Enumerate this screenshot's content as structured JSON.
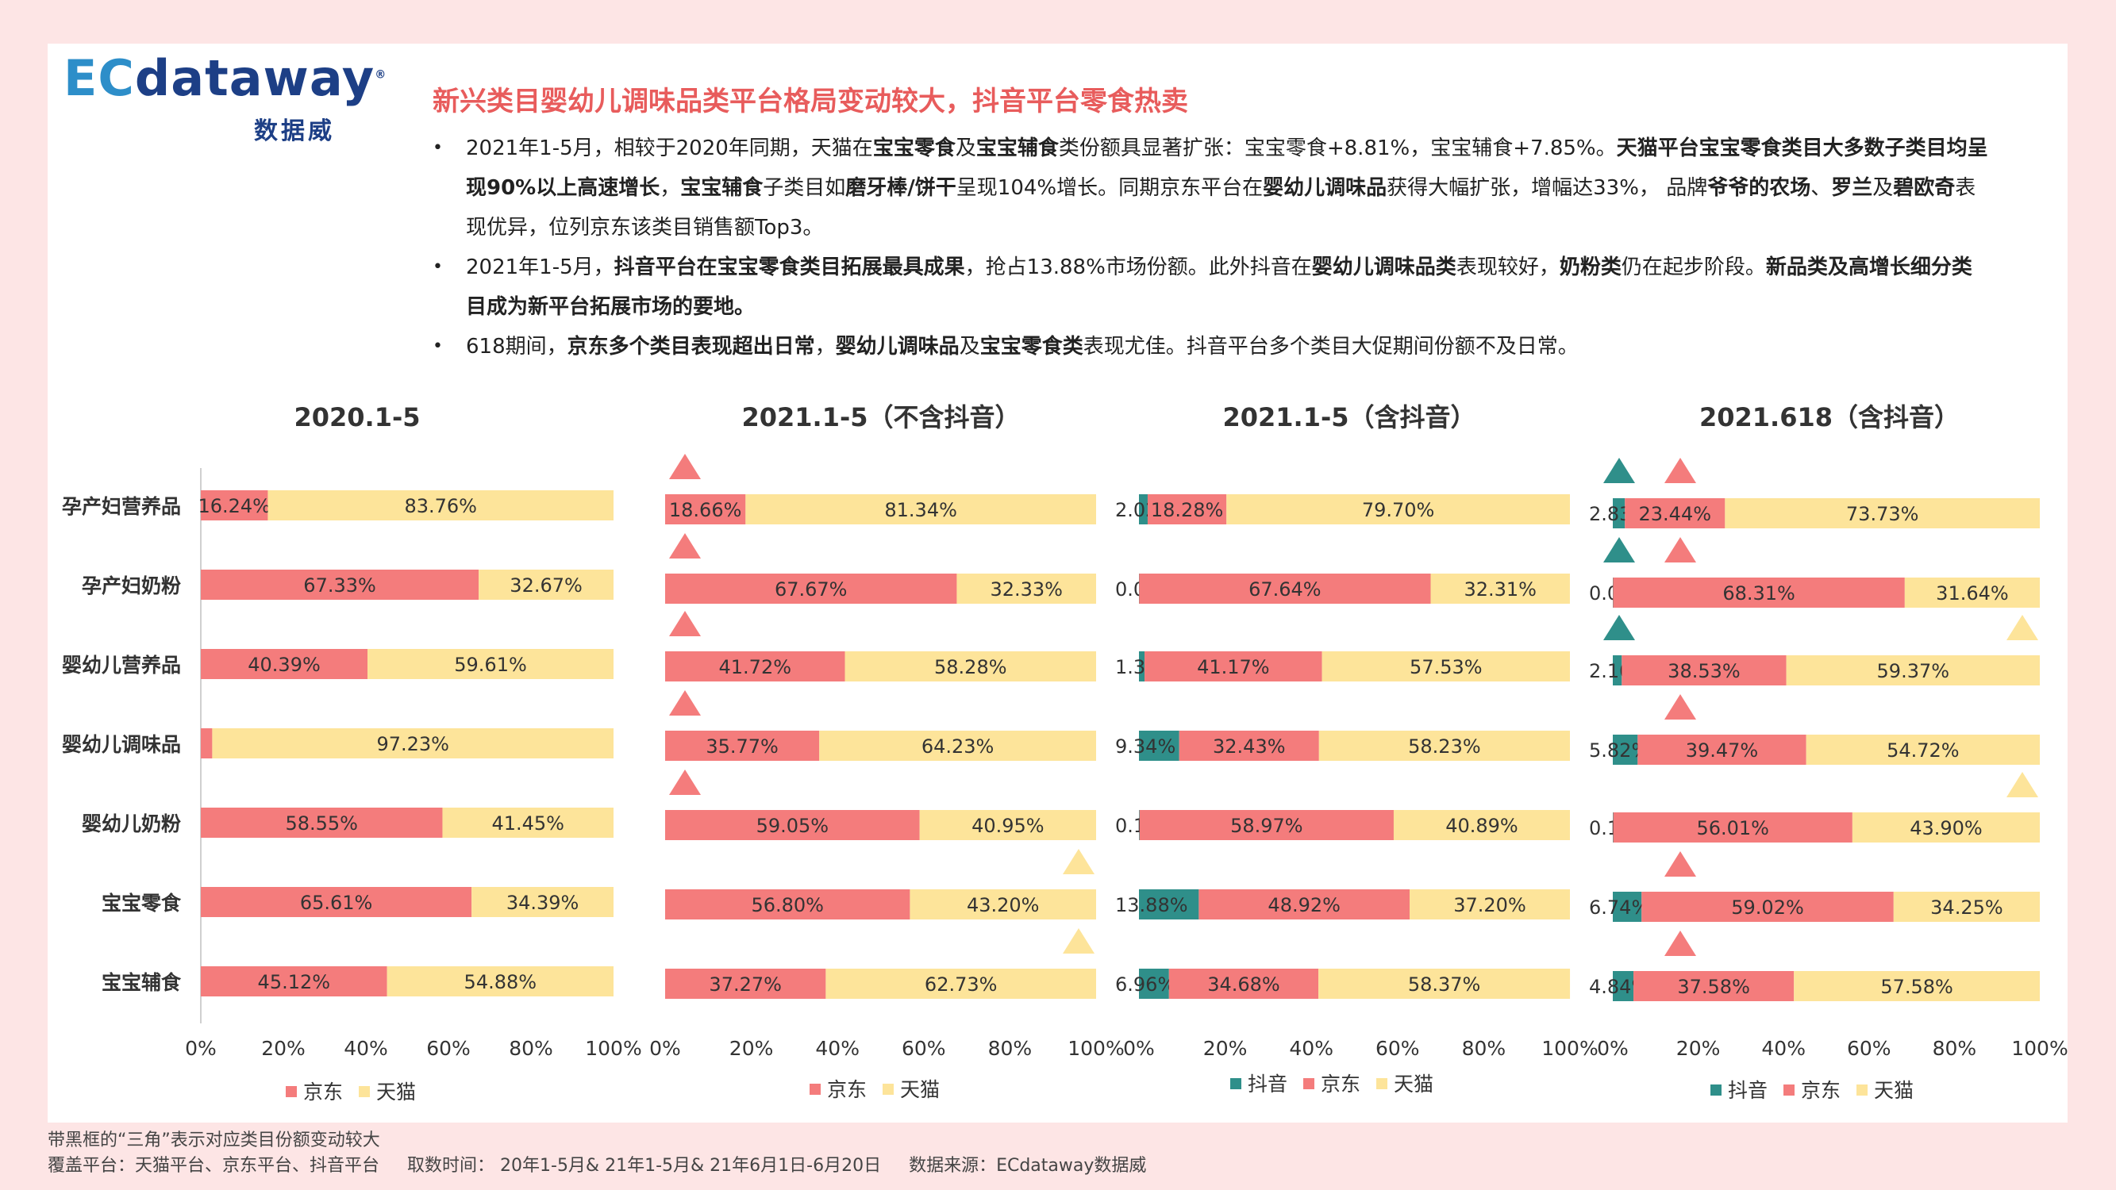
{
  "logo": {
    "text_ec": "EC",
    "text_main": "dataway",
    "reg": "®",
    "subtitle": "数据威"
  },
  "headline": "新兴类目婴幼儿调味品类平台格局变动较大，抖音平台零食热卖",
  "bullets": [
    [
      {
        "t": "2021年1-5月，相较于2020年同期，天猫在",
        "b": false
      },
      {
        "t": "宝宝零食",
        "b": true
      },
      {
        "t": "及",
        "b": false
      },
      {
        "t": "宝宝辅食",
        "b": true
      },
      {
        "t": "类份额具显著扩张：宝宝零食+8.81%，宝宝辅食+7.85%。",
        "b": false
      },
      {
        "t": "天猫平台宝宝零食类目大多数子类目均呈现90%以上高速增长",
        "b": true
      },
      {
        "t": "，",
        "b": false
      },
      {
        "t": "宝宝辅食",
        "b": true
      },
      {
        "t": "子类目如",
        "b": false
      },
      {
        "t": "磨牙棒/饼干",
        "b": true
      },
      {
        "t": "呈现104%增长。同期京东平台在",
        "b": false
      },
      {
        "t": "婴幼儿调味品",
        "b": true
      },
      {
        "t": "获得大幅扩张，增幅达33%， 品牌",
        "b": false
      },
      {
        "t": "爷爷的农场",
        "b": true
      },
      {
        "t": "、",
        "b": false
      },
      {
        "t": "罗兰",
        "b": true
      },
      {
        "t": "及",
        "b": false
      },
      {
        "t": "碧欧奇",
        "b": true
      },
      {
        "t": "表现优异，位列京东该类目销售额Top3。",
        "b": false
      }
    ],
    [
      {
        "t": "2021年1-5月，",
        "b": false
      },
      {
        "t": "抖音平台在宝宝零食类目拓展最具成果",
        "b": true
      },
      {
        "t": "，抢占13.88%市场份额。此外抖音在",
        "b": false
      },
      {
        "t": "婴幼儿调味品类",
        "b": true
      },
      {
        "t": "表现较好，",
        "b": false
      },
      {
        "t": "奶粉类",
        "b": true
      },
      {
        "t": "仍在起步阶段。",
        "b": false
      },
      {
        "t": "新品类及高增长细分类目成为新平台拓展市场的要地。",
        "b": true
      }
    ],
    [
      {
        "t": "618期间，",
        "b": false
      },
      {
        "t": "京东多个类目表现超出日常",
        "b": true
      },
      {
        "t": "，",
        "b": false
      },
      {
        "t": "婴幼儿调味品",
        "b": true
      },
      {
        "t": "及",
        "b": false
      },
      {
        "t": "宝宝零食类",
        "b": true
      },
      {
        "t": "表现尤佳。抖音平台多个类目大促期间份额不及日常。",
        "b": false
      }
    ]
  ],
  "colors": {
    "douyin": "#2f8f8a",
    "jd": "#f47c7c",
    "tmall": "#fde49a",
    "headline": "#e85c5c"
  },
  "chart_data": [
    {
      "type": "bar",
      "title": "2020.1-5",
      "categories": [
        "孕产妇营养品",
        "孕产妇奶粉",
        "婴幼儿营养品",
        "婴幼儿调味品",
        "婴幼儿奶粉",
        "宝宝零食",
        "宝宝辅食"
      ],
      "series": [
        {
          "name": "京东",
          "key": "jd",
          "values": [
            16.24,
            67.33,
            40.39,
            2.77,
            58.55,
            65.61,
            45.12
          ]
        },
        {
          "name": "天猫",
          "key": "tmall",
          "values": [
            83.76,
            32.67,
            59.61,
            97.23,
            41.45,
            34.39,
            54.88
          ]
        }
      ],
      "xticks": [
        "0%",
        "20%",
        "40%",
        "60%",
        "80%",
        "100%"
      ],
      "xlim": [
        0,
        100
      ],
      "legend": [
        "京东",
        "天猫"
      ],
      "markers": []
    },
    {
      "type": "bar",
      "title": "2021.1-5（不含抖音）",
      "categories": [
        "孕产妇营养品",
        "孕产妇奶粉",
        "婴幼儿营养品",
        "婴幼儿调味品",
        "婴幼儿奶粉",
        "宝宝零食",
        "宝宝辅食"
      ],
      "series": [
        {
          "name": "京东",
          "key": "jd",
          "values": [
            18.66,
            67.67,
            41.72,
            35.77,
            59.05,
            56.8,
            37.27
          ]
        },
        {
          "name": "天猫",
          "key": "tmall",
          "values": [
            81.34,
            32.33,
            58.28,
            64.23,
            40.95,
            43.2,
            62.73
          ]
        }
      ],
      "xticks": [
        "0%",
        "20%",
        "40%",
        "60%",
        "80%",
        "100%"
      ],
      "xlim": [
        0,
        100
      ],
      "legend": [
        "京东",
        "天猫"
      ],
      "markers": [
        {
          "row": 0,
          "key": "jd"
        },
        {
          "row": 1,
          "key": "jd"
        },
        {
          "row": 2,
          "key": "jd"
        },
        {
          "row": 3,
          "key": "jd"
        },
        {
          "row": 4,
          "key": "jd"
        },
        {
          "row": 5,
          "key": "tmall"
        },
        {
          "row": 6,
          "key": "tmall"
        }
      ]
    },
    {
      "type": "bar",
      "title": "2021.1-5（含抖音）",
      "categories": [
        "孕产妇营养品",
        "孕产妇奶粉",
        "婴幼儿营养品",
        "婴幼儿调味品",
        "婴幼儿奶粉",
        "宝宝零食",
        "宝宝辅食"
      ],
      "series": [
        {
          "name": "抖音",
          "key": "douyin",
          "values": [
            2.02,
            0.04,
            1.3,
            9.34,
            0.14,
            13.88,
            6.96
          ]
        },
        {
          "name": "京东",
          "key": "jd",
          "values": [
            18.28,
            67.64,
            41.17,
            32.43,
            58.97,
            48.92,
            34.68
          ]
        },
        {
          "name": "天猫",
          "key": "tmall",
          "values": [
            79.7,
            32.31,
            57.53,
            58.23,
            40.89,
            37.2,
            58.37
          ]
        }
      ],
      "xticks": [
        "0%",
        "20%",
        "40%",
        "60%",
        "80%",
        "100%"
      ],
      "xlim": [
        0,
        100
      ],
      "legend": [
        "抖音",
        "京东",
        "天猫"
      ],
      "markers": []
    },
    {
      "type": "bar",
      "title": "2021.618（含抖音）",
      "categories": [
        "孕产妇营养品",
        "孕产妇奶粉",
        "婴幼儿营养品",
        "婴幼儿调味品",
        "婴幼儿奶粉",
        "宝宝零食",
        "宝宝辅食"
      ],
      "series": [
        {
          "name": "抖音",
          "key": "douyin",
          "values": [
            2.83,
            0.06,
            2.1,
            5.82,
            0.1,
            6.74,
            4.84
          ]
        },
        {
          "name": "京东",
          "key": "jd",
          "values": [
            23.44,
            68.31,
            38.53,
            39.47,
            56.01,
            59.02,
            37.58
          ]
        },
        {
          "name": "天猫",
          "key": "tmall",
          "values": [
            73.73,
            31.64,
            59.37,
            54.72,
            43.9,
            34.25,
            57.58
          ]
        }
      ],
      "xticks": [
        "0%",
        "20%",
        "40%",
        "60%",
        "80%",
        "100%"
      ],
      "xlim": [
        0,
        100
      ],
      "legend": [
        "抖音",
        "京东",
        "天猫"
      ],
      "markers": [
        {
          "row": 0,
          "key": "douyin"
        },
        {
          "row": 0,
          "key": "jd"
        },
        {
          "row": 1,
          "key": "douyin"
        },
        {
          "row": 1,
          "key": "jd"
        },
        {
          "row": 2,
          "key": "douyin"
        },
        {
          "row": 2,
          "key": "tmall"
        },
        {
          "row": 3,
          "key": "jd"
        },
        {
          "row": 4,
          "key": "tmall"
        },
        {
          "row": 5,
          "key": "jd"
        },
        {
          "row": 6,
          "key": "jd"
        }
      ]
    }
  ],
  "footer": {
    "note": "带黑框的“三角”表示对应类目份额变动较大",
    "coverage": "覆盖平台：天猫平台、京东平台、抖音平台",
    "period": "取数时间：  20年1-5月& 21年1-5月& 21年6月1日-6月20日",
    "source": "数据来源：ECdataway数据威"
  }
}
